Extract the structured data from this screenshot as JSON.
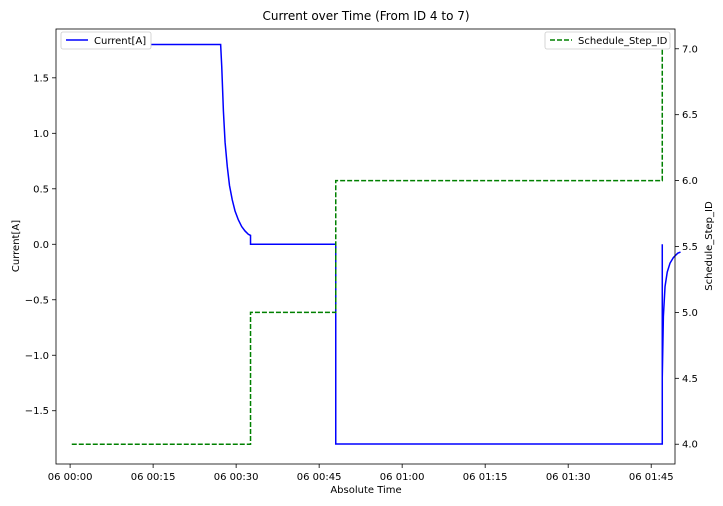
{
  "chart_data": {
    "type": "line",
    "title": "Current over Time (From ID 4 to 7)",
    "xlabel": "Absolute Time",
    "ylabel_left": "Current[A]",
    "ylabel_right": "Schedule_Step_ID",
    "x_unit": "minutes after 06 00:00",
    "xlim": [
      -2.55,
      109.3
    ],
    "xticks": [
      {
        "value": 0,
        "label": "06 00:00"
      },
      {
        "value": 15,
        "label": "06 00:15"
      },
      {
        "value": 30,
        "label": "06 00:30"
      },
      {
        "value": 45,
        "label": "06 00:45"
      },
      {
        "value": 60,
        "label": "06 01:00"
      },
      {
        "value": 75,
        "label": "06 01:15"
      },
      {
        "value": 90,
        "label": "06 01:30"
      },
      {
        "value": 105,
        "label": "06 01:45"
      }
    ],
    "ylim_left": [
      -1.98,
      1.94
    ],
    "yticks_left": [
      {
        "value": 1.5,
        "label": "1.5"
      },
      {
        "value": 1.0,
        "label": "1.0"
      },
      {
        "value": 0.5,
        "label": "0.5"
      },
      {
        "value": 0.0,
        "label": "0.0"
      },
      {
        "value": -0.5,
        "label": "−0.5"
      },
      {
        "value": -1.0,
        "label": "−1.0"
      },
      {
        "value": -1.5,
        "label": "−1.5"
      }
    ],
    "ylim_right": [
      3.85,
      7.15
    ],
    "yticks_right": [
      {
        "value": 4.0,
        "label": "4.0"
      },
      {
        "value": 4.5,
        "label": "4.5"
      },
      {
        "value": 5.0,
        "label": "5.0"
      },
      {
        "value": 5.5,
        "label": "5.5"
      },
      {
        "value": 6.0,
        "label": "6.0"
      },
      {
        "value": 6.5,
        "label": "6.5"
      },
      {
        "value": 7.0,
        "label": "7.0"
      }
    ],
    "grid": false,
    "series": [
      {
        "name": "Current[A]",
        "axis": "left",
        "color": "#0000ff",
        "style": "solid",
        "x": [
          0.3,
          27.2,
          27.4,
          27.7,
          28.0,
          28.4,
          28.8,
          29.3,
          29.8,
          30.4,
          31.0,
          31.6,
          32.2,
          32.6,
          32.6,
          33.0,
          48.0,
          48.0,
          48.0,
          107.0,
          107.0,
          107.0,
          107.2,
          107.5,
          107.9,
          108.4,
          109.0,
          109.8,
          110.3
        ],
        "y": [
          1.8,
          1.8,
          1.6,
          1.2,
          0.92,
          0.7,
          0.53,
          0.4,
          0.3,
          0.22,
          0.16,
          0.12,
          0.09,
          0.08,
          0.0,
          0.0,
          0.0,
          -1.2,
          -1.8,
          -1.8,
          0.0,
          -1.2,
          -0.65,
          -0.38,
          -0.25,
          -0.17,
          -0.12,
          -0.08,
          -0.07
        ]
      },
      {
        "name": "Schedule_Step_ID",
        "axis": "right",
        "color": "#008000",
        "style": "dashed",
        "x": [
          0.3,
          32.6,
          32.6,
          48.0,
          48.0,
          107.0,
          107.0
        ],
        "y": [
          4.0,
          4.0,
          5.0,
          5.0,
          6.0,
          6.0,
          7.0
        ]
      }
    ],
    "legend_left_position": "upper-left",
    "legend_right_position": "upper-right"
  }
}
